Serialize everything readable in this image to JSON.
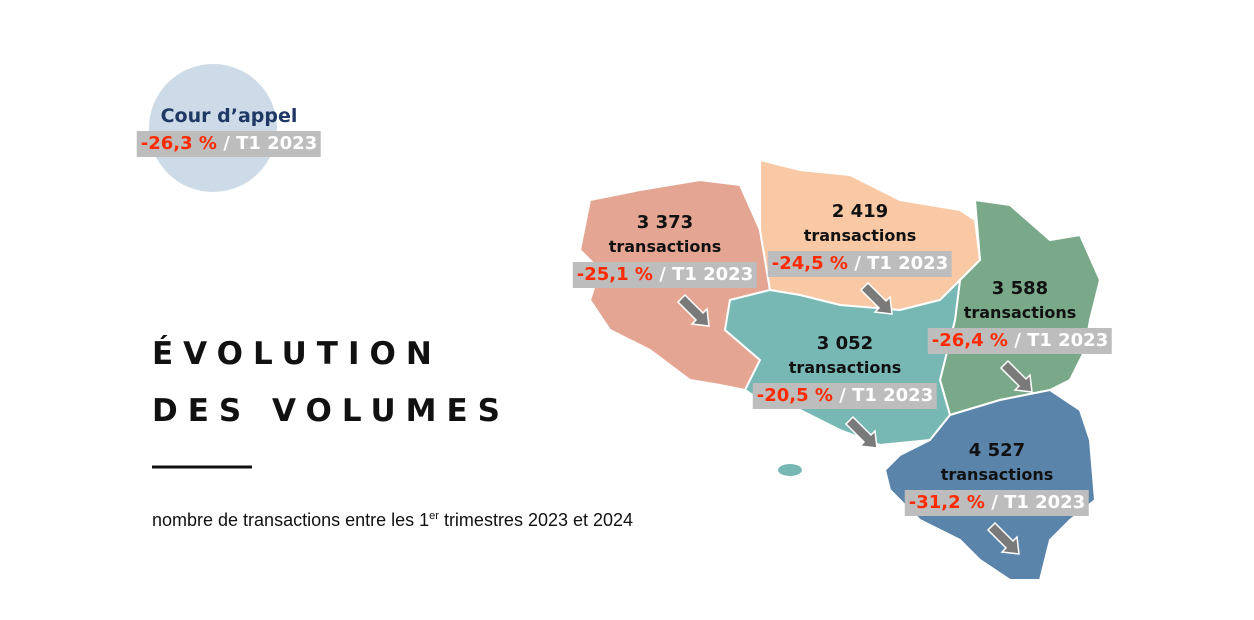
{
  "header": {
    "title_lines": [
      "ÉVOLUTION",
      "DES VOLUMES"
    ],
    "subtitle": {
      "before": "nombre de transactions entre les 1",
      "superscript": "er",
      "after": " trimestres 2023 et 2024"
    }
  },
  "court": {
    "label": "Cour d’appel",
    "change": "-26,3 %",
    "reference": "/ T1 2023"
  },
  "regions": [
    {
      "count": "3 373",
      "unit": "transactions",
      "change": "-25,1 %",
      "reference": "/ T1 2023"
    },
    {
      "count": "2 419",
      "unit": "transactions",
      "change": "-24,5 %",
      "reference": "/ T1 2023"
    },
    {
      "count": "3 588",
      "unit": "transactions",
      "change": "-26,4 %",
      "reference": "/ T1 2023"
    },
    {
      "count": "3 052",
      "unit": "transactions",
      "change": "-20,5 %",
      "reference": "/ T1 2023"
    },
    {
      "count": "4 527",
      "unit": "transactions",
      "change": "-31,2 %",
      "reference": "/ T1 2023"
    }
  ]
}
